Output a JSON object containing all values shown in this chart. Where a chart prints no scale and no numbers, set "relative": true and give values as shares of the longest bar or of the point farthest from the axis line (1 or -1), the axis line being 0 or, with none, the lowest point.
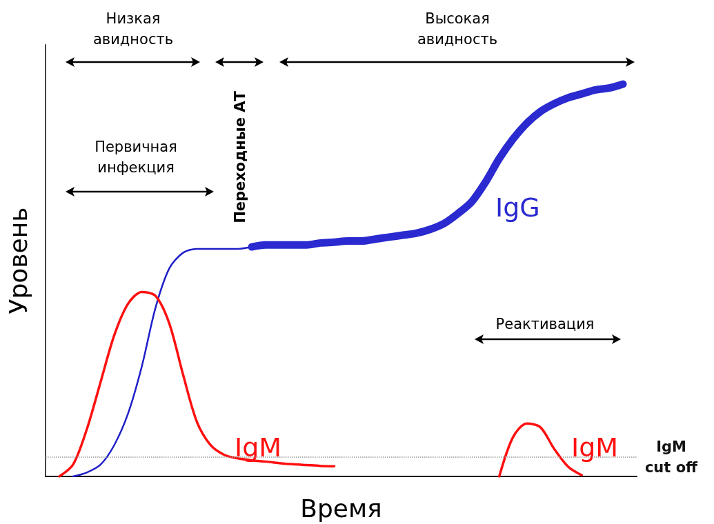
{
  "chart_data": {
    "type": "line",
    "relative": true,
    "xlabel": "Время",
    "ylabel": "Уровень",
    "categories": [
      null,
      null,
      null,
      null,
      null,
      null,
      null,
      null,
      null,
      null,
      null,
      null,
      null,
      null,
      null,
      null,
      null,
      null,
      null,
      null,
      null,
      null,
      null,
      null,
      null,
      null,
      null,
      null,
      null,
      null,
      null,
      null,
      null,
      null,
      null,
      null,
      null,
      null,
      null,
      null,
      null,
      null,
      null,
      null
    ],
    "series": [
      {
        "color": "#2020c8",
        "values": [
          null,
          null,
          0,
          0.01,
          0.03,
          0.08,
          0.16,
          0.28,
          0.43,
          0.53,
          0.57,
          0.58,
          0.58,
          0.58,
          0.58,
          0.585,
          null,
          null,
          null,
          null,
          null,
          null,
          null,
          null,
          null,
          null,
          null,
          null,
          null,
          null,
          null,
          null,
          null,
          null,
          null,
          null,
          null,
          null,
          null,
          null,
          null,
          null,
          null,
          null
        ]
      },
      {
        "name": "IgG",
        "color": "#2a2ad0",
        "values": [
          null,
          null,
          null,
          null,
          null,
          null,
          null,
          null,
          null,
          null,
          null,
          null,
          null,
          null,
          null,
          0.585,
          0.59,
          0.59,
          0.59,
          0.59,
          0.595,
          0.597,
          0.6,
          0.6,
          0.605,
          0.61,
          0.615,
          0.62,
          0.63,
          0.645,
          0.67,
          0.7,
          0.75,
          0.81,
          0.86,
          0.9,
          0.93,
          0.95,
          0.965,
          0.975,
          0.985,
          0.99,
          1.0,
          null
        ]
      },
      {
        "name": "IgM",
        "color": "#ff1010",
        "values": [
          null,
          0,
          0.03,
          0.12,
          0.24,
          0.36,
          0.44,
          0.47,
          0.46,
          0.39,
          0.26,
          0.14,
          0.08,
          0.055,
          0.046,
          0.041,
          0.038,
          0.034,
          0.031,
          0.029,
          0.027,
          0.026,
          null,
          null,
          null,
          null,
          null,
          null,
          null,
          null,
          null,
          null,
          null,
          null,
          null,
          null,
          null,
          null,
          null,
          null,
          null,
          null,
          null,
          null
        ]
      },
      {
        "name": "IgM",
        "color": "#ff1010",
        "values": [
          null,
          null,
          null,
          null,
          null,
          null,
          null,
          null,
          null,
          null,
          null,
          null,
          null,
          null,
          null,
          null,
          null,
          null,
          null,
          null,
          null,
          null,
          null,
          null,
          null,
          null,
          null,
          null,
          null,
          null,
          null,
          null,
          null,
          0,
          0.1,
          0.135,
          0.125,
          0.07,
          0.025,
          0.003,
          null,
          null,
          null,
          null
        ]
      }
    ],
    "ref_lines": [
      {
        "axis": "y",
        "value": 0.046,
        "label": "IgM cut off",
        "color": "#999999",
        "line_style": "dotted"
      }
    ],
    "annotations": [
      "Низкая авидность",
      "Переходные АТ",
      "Высокая авидность",
      "Первичная инфекция",
      "Реактивация"
    ],
    "grid": false,
    "legend": false,
    "marker": "none",
    "line_style": "solid"
  }
}
